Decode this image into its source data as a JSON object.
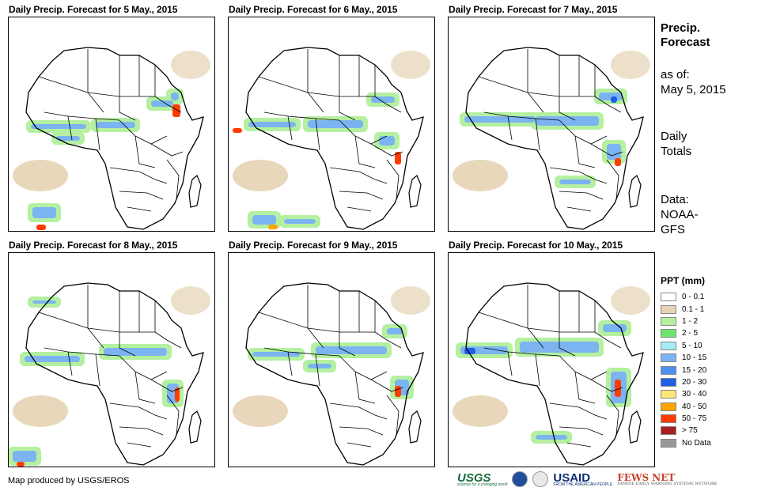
{
  "panels": [
    {
      "title": "Daily Precip. Forecast for 5 May., 2015"
    },
    {
      "title": "Daily Precip. Forecast for 6 May., 2015"
    },
    {
      "title": "Daily Precip. Forecast for 7 May., 2015"
    },
    {
      "title": "Daily Precip. Forecast for 8 May., 2015"
    },
    {
      "title": "Daily Precip. Forecast for 9 May., 2015"
    },
    {
      "title": "Daily Precip. Forecast for 10 May., 2015"
    }
  ],
  "sidebar": {
    "heading_line1": "Precip.",
    "heading_line2": "Forecast",
    "asof_line1": "as of:",
    "asof_line2": "May 5, 2015",
    "totals_line1": "Daily",
    "totals_line2": "Totals",
    "data_line1": "Data:",
    "data_line2": "NOAA-",
    "data_line3": "GFS"
  },
  "legend": {
    "title": "PPT (mm)",
    "items": [
      {
        "label": "0 - 0.1",
        "color": "#ffffff"
      },
      {
        "label": "0.1 - 1",
        "color": "#e6d3b3"
      },
      {
        "label": "1 - 2",
        "color": "#b4f0a0"
      },
      {
        "label": "2 - 5",
        "color": "#6ee66e"
      },
      {
        "label": "5 - 10",
        "color": "#a5ecf5"
      },
      {
        "label": "10 - 15",
        "color": "#7bb4f0"
      },
      {
        "label": "15 - 20",
        "color": "#4b8ff0"
      },
      {
        "label": "20 - 30",
        "color": "#1f5fe6"
      },
      {
        "label": "30 - 40",
        "color": "#ffe678"
      },
      {
        "label": "40 - 50",
        "color": "#ffa500"
      },
      {
        "label": "50 - 75",
        "color": "#ff3c00"
      },
      {
        "label": "> 75",
        "color": "#aa1e1e"
      },
      {
        "label": "No Data",
        "color": "#999999"
      }
    ]
  },
  "footer": {
    "credit": "Map produced by USGS/EROS",
    "usgs": "USGS",
    "usgs_tag": "science for a changing world",
    "usaid": "USAID",
    "usaid_tag": "FROM THE AMERICAN PEOPLE",
    "fews": "FEWS NET",
    "fews_tag": "FAMINE EARLY WARNING SYSTEMS NETWORK"
  }
}
